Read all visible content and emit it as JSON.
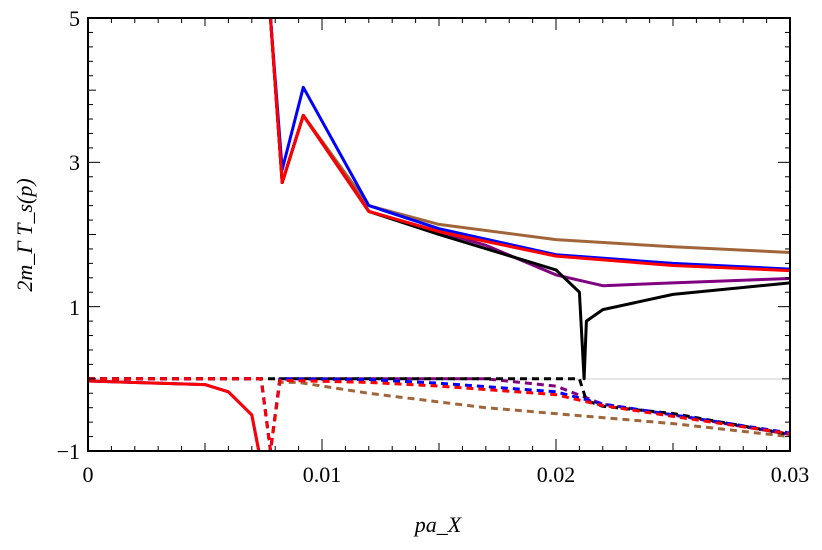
{
  "chart_data": {
    "type": "line",
    "xlabel": "pa_X",
    "ylabel": "2m_Γ T_s(p)",
    "xlim": [
      0,
      0.03
    ],
    "ylim": [
      -1,
      5
    ],
    "xticks": [
      "0",
      "0.01",
      "0.02",
      "0.03"
    ],
    "yticks": [
      "−1",
      "1",
      "3",
      "5"
    ],
    "xtick_values": [
      0,
      0.01,
      0.02,
      0.03
    ],
    "ytick_values": [
      -1,
      1,
      3,
      5
    ],
    "grid": false,
    "series": [
      {
        "color": "#a0663a",
        "style": "solid",
        "x": [
          0.0078,
          0.0083,
          0.0092,
          0.012,
          0.015,
          0.02,
          0.025,
          0.03
        ],
        "y": [
          5,
          2.72,
          3.65,
          2.4,
          2.14,
          1.93,
          1.83,
          1.75
        ]
      },
      {
        "color": "#800080",
        "style": "solid",
        "x": [
          0.0078,
          0.0083,
          0.0092,
          0.012,
          0.015,
          0.017,
          0.02,
          0.022,
          0.025,
          0.03
        ],
        "y": [
          5,
          2.72,
          3.65,
          2.32,
          2.04,
          1.85,
          1.44,
          1.29,
          1.33,
          1.39
        ]
      },
      {
        "color": "#000000",
        "style": "solid",
        "x": [
          0.0078,
          0.0083,
          0.0092,
          0.012,
          0.015,
          0.02,
          0.021,
          0.0212,
          0.0213,
          0.022,
          0.025,
          0.03
        ],
        "y": [
          5,
          2.72,
          3.65,
          2.32,
          2.0,
          1.51,
          1.2,
          0,
          0.8,
          0.96,
          1.17,
          1.33
        ]
      },
      {
        "color": "#0000ff",
        "style": "solid",
        "x": [
          0,
          0.005,
          0.006,
          0.007,
          0.0073,
          null,
          0.0078,
          0.0083,
          0.0092,
          0.012,
          0.015,
          0.02,
          0.025,
          0.03
        ],
        "y": [
          -0.03,
          -0.08,
          -0.18,
          -0.5,
          -1,
          null,
          5,
          2.9,
          4.04,
          2.4,
          2.08,
          1.72,
          1.6,
          1.52
        ]
      },
      {
        "color": "#ff0000",
        "style": "solid",
        "x": [
          0,
          0.005,
          0.006,
          0.007,
          0.0073,
          null,
          0.0078,
          0.0083,
          0.0092,
          0.012,
          0.015,
          0.02,
          0.025,
          0.03
        ],
        "y": [
          -0.03,
          -0.08,
          -0.18,
          -0.5,
          -1,
          null,
          5,
          2.72,
          3.65,
          2.32,
          2.04,
          1.7,
          1.57,
          1.5
        ]
      },
      {
        "color": "#a0663a",
        "style": "dashed",
        "x": [
          0,
          0.0074,
          0.0078,
          0.0082,
          0.009,
          0.012,
          0.017,
          0.025,
          0.03
        ],
        "y": [
          0,
          0,
          -1,
          -0.05,
          -0.05,
          -0.2,
          -0.4,
          -0.62,
          -0.8
        ]
      },
      {
        "color": "#800080",
        "style": "dashed",
        "x": [
          0,
          0.0074,
          0.0078,
          0.0082,
          0.017,
          0.02,
          0.022,
          0.025,
          0.03
        ],
        "y": [
          0,
          0,
          -1,
          0,
          0,
          -0.1,
          -0.35,
          -0.5,
          -0.77
        ]
      },
      {
        "color": "#000000",
        "style": "dashed",
        "x": [
          0,
          0.021,
          0.0213,
          0.022,
          0.025,
          0.03
        ],
        "y": [
          0,
          0,
          -0.3,
          -0.38,
          -0.48,
          -0.77
        ]
      },
      {
        "color": "#0000ff",
        "style": "dashed",
        "x": [
          0,
          0.0074,
          0.0078,
          0.0082,
          0.012,
          0.015,
          0.02,
          0.022,
          0.025,
          0.03
        ],
        "y": [
          0,
          0,
          -1,
          0,
          -0.01,
          -0.06,
          -0.18,
          -0.35,
          -0.5,
          -0.75
        ]
      },
      {
        "color": "#ff0000",
        "style": "dashed",
        "x": [
          0,
          0.0074,
          0.0078,
          0.0082,
          0.012,
          0.015,
          0.02,
          0.022,
          0.025,
          0.03
        ],
        "y": [
          0,
          0,
          -1,
          -0.02,
          -0.05,
          -0.1,
          -0.22,
          -0.37,
          -0.52,
          -0.76
        ]
      }
    ]
  }
}
